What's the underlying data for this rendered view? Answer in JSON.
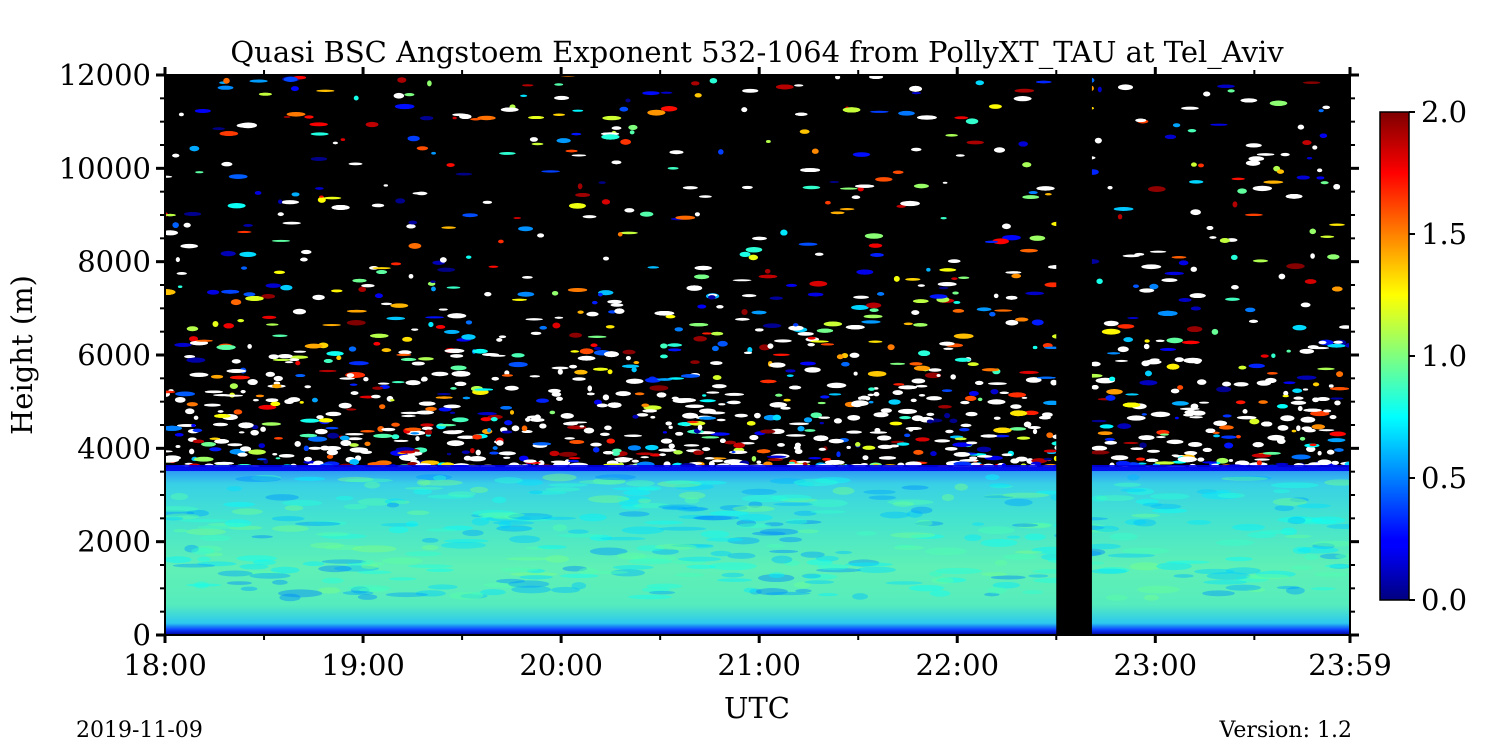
{
  "chart_data": {
    "type": "heatmap",
    "title": "Quasi BSC Angstoem Exponent 532-1064 from PollyXT_TAU at Tel_Aviv",
    "xlabel": "UTC",
    "ylabel": "Height (m)",
    "x_ticks": [
      "18:00",
      "19:00",
      "20:00",
      "21:00",
      "22:00",
      "23:00",
      "23:59"
    ],
    "x_tick_hours": [
      18,
      19,
      20,
      21,
      22,
      23,
      23.983
    ],
    "xlim_hours": [
      18,
      23.983
    ],
    "y_ticks": [
      0,
      2000,
      4000,
      6000,
      8000,
      10000,
      12000
    ],
    "y_tick_labels": [
      "0",
      "2000",
      "4000",
      "6000",
      "8000",
      "10000",
      "12000"
    ],
    "ylim": [
      0,
      12000
    ],
    "colorbar": {
      "colormap": "jet",
      "range": [
        0.0,
        2.0
      ],
      "ticks": [
        0.0,
        0.5,
        1.0,
        1.5,
        2.0
      ],
      "tick_labels": [
        "0.0",
        "0.5",
        "1.0",
        "1.5",
        "2.0"
      ]
    },
    "regions": {
      "surface_low_layer": {
        "height_range_m": [
          0,
          500
        ],
        "value": 0.1
      },
      "aerosol_layer": {
        "height_range_m": [
          500,
          3600
        ],
        "value_range": [
          0.5,
          1.0
        ],
        "typical_value": 0.75
      },
      "layer_top_edge": {
        "height_m": 3600,
        "value": 0.2
      },
      "noisy_region": {
        "height_range_m": [
          3600,
          12000
        ],
        "note": "sparse noisy values, mostly no data"
      },
      "data_gap": {
        "time_range_hours": [
          22.5,
          22.68
        ]
      }
    },
    "no_data_color": "#000000",
    "saturated_color": "#ffffff",
    "grid": false
  },
  "footer": {
    "date": "2019-11-09",
    "version": "Version: 1.2"
  }
}
